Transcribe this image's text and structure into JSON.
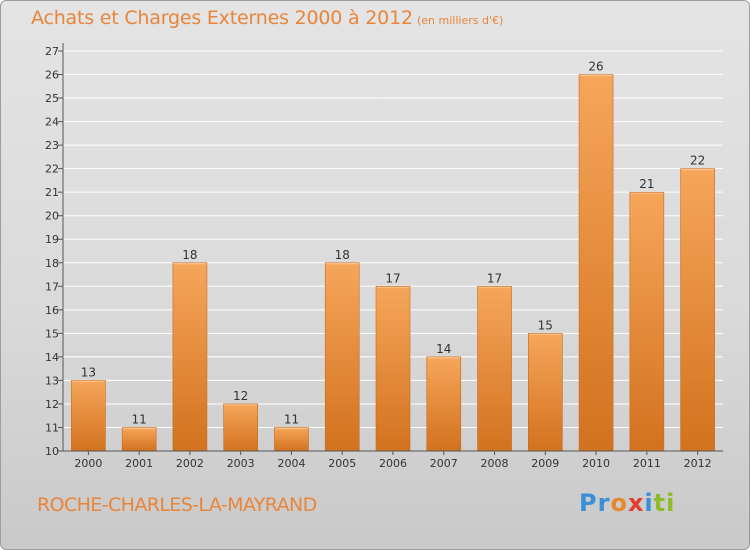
{
  "header": {
    "title": "Achats et Charges Externes 2000 à 2012",
    "subtitle": "(en milliers d'€)"
  },
  "footer": {
    "commune": "ROCHE-CHARLES-LA-MAYRAND",
    "logo_letters": [
      "P",
      "r",
      "o",
      "x",
      "i",
      "t",
      "i"
    ],
    "logo_colors": [
      "#3b8fd6",
      "#3b8fd6",
      "#e6882e",
      "#e23c2c",
      "#3b8fd6",
      "#8cbb2c",
      "#8cbb2c"
    ]
  },
  "colors": {
    "bar_light": "#f6a65a",
    "bar_dark": "#d2721e",
    "accent": "#e8853a",
    "grid": "#ffffff"
  },
  "chart_data": {
    "type": "bar",
    "title": "Achats et Charges Externes 2000 à 2012",
    "subtitle": "(en milliers d'€)",
    "categories": [
      "2000",
      "2001",
      "2002",
      "2003",
      "2004",
      "2005",
      "2006",
      "2007",
      "2008",
      "2009",
      "2010",
      "2011",
      "2012"
    ],
    "values": [
      13,
      11,
      18,
      12,
      11,
      18,
      17,
      14,
      17,
      15,
      26,
      21,
      22
    ],
    "ylim": [
      10,
      27
    ],
    "yticks": [
      10,
      11,
      12,
      13,
      14,
      15,
      16,
      17,
      18,
      19,
      20,
      21,
      22,
      23,
      24,
      25,
      26,
      27
    ],
    "grid": true,
    "legend": "none",
    "xlabel": "",
    "ylabel": ""
  }
}
